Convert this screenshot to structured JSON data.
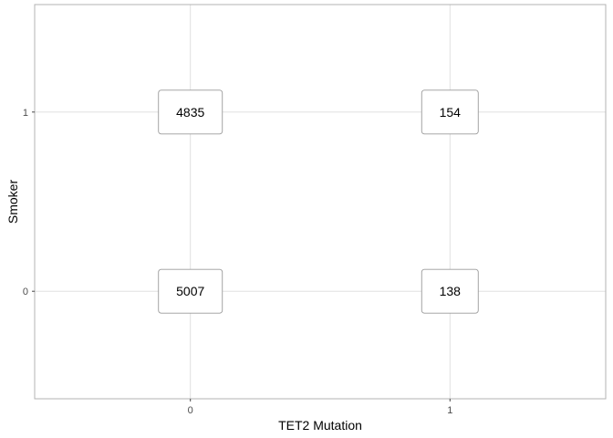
{
  "chart_data": {
    "type": "table",
    "title": "",
    "xlabel": "TET2 Mutation",
    "ylabel": "Smoker",
    "x_categories": [
      "0",
      "1"
    ],
    "y_categories": [
      "0",
      "1"
    ],
    "cells": [
      {
        "x": "0",
        "y": "1",
        "value": 4835
      },
      {
        "x": "1",
        "y": "1",
        "value": 154
      },
      {
        "x": "0",
        "y": "0",
        "value": 5007
      },
      {
        "x": "1",
        "y": "0",
        "value": 138
      }
    ],
    "grid": true,
    "legend": "none"
  }
}
